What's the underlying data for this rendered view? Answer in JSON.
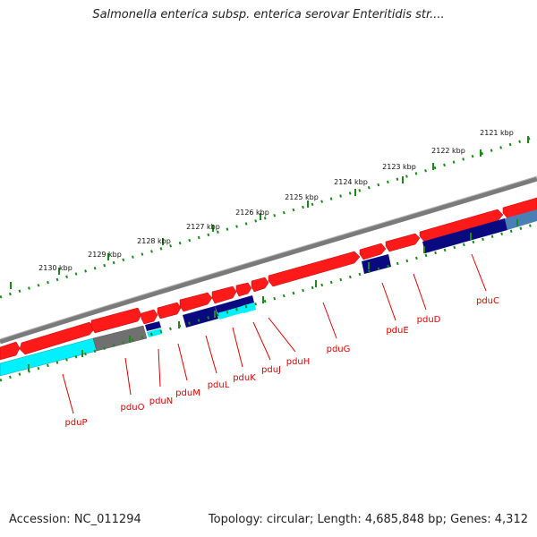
{
  "title": "Salmonella enterica subsp. enterica serovar Enteritidis str....",
  "footer": {
    "accession": "Accession: NC_011294",
    "stats": "Topology: circular; Length: 4,685,848 bp; Genes: 4,312"
  },
  "colors": {
    "forward_gene": "#ff1a1a",
    "reverse_gene_dark": "#0a0a80",
    "reverse_gene_cyan": "#00f0ff",
    "reverse_gene_steel": "#4a7fb5",
    "reverse_gene_gray": "#707070",
    "label": "#e00000",
    "ruler_dots": "#1a8a1a",
    "backbone": "#808080"
  },
  "kbp_labels": [
    "2121 kbp",
    "2122 kbp",
    "2123 kbp",
    "2124 kbp",
    "2125 kbp",
    "2126 kbp",
    "2127 kbp",
    "2128 kbp",
    "2129 kbp",
    "2130 kbp"
  ],
  "gene_labels": [
    "pduC",
    "pduD",
    "pduE",
    "pduG",
    "pduH",
    "pduJ",
    "pduK",
    "pduL",
    "pduM",
    "pduN",
    "pduO",
    "pduP"
  ]
}
